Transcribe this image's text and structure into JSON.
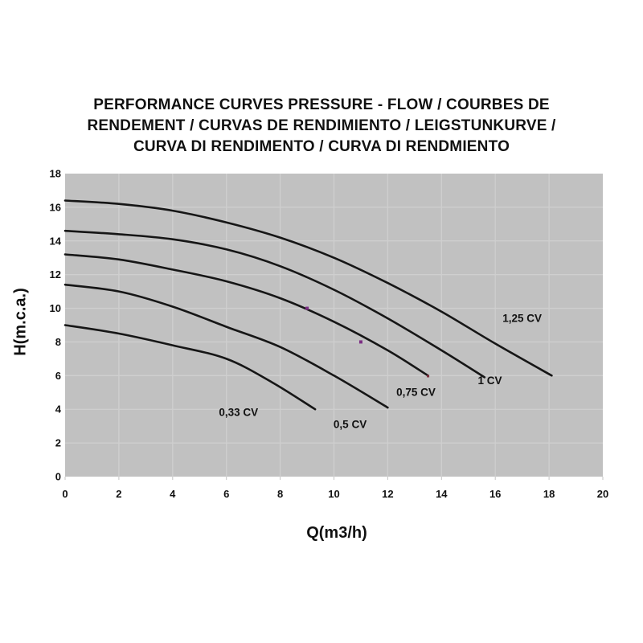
{
  "title": {
    "line1": "PERFORMANCE CURVES  PRESSURE - FLOW   /  COURBES DE",
    "line2": "RENDEMENT  /  CURVAS DE RENDIMIENTO  /  LEIGSTUNKURVE  /",
    "line3": "CURVA DI RENDIMENTO  /  CURVA DI RENDMIENTO"
  },
  "chart_data": {
    "type": "line",
    "title": "PERFORMANCE CURVES  PRESSURE - FLOW / COURBES DE RENDEMENT / CURVAS DE RENDIMIENTO / LEIGSTUNKURVE / CURVA DI RENDIMENTO / CURVA DI RENDMIENTO",
    "xlabel": "Q(m3/h)",
    "ylabel": "H(m.c.a.)",
    "xlim": [
      0,
      20
    ],
    "ylim": [
      0,
      18
    ],
    "x_ticks": [
      0,
      2,
      4,
      6,
      8,
      10,
      12,
      14,
      16,
      18,
      20
    ],
    "y_ticks": [
      0,
      2,
      4,
      6,
      8,
      10,
      12,
      14,
      16,
      18
    ],
    "grid": true,
    "legend_position": "inline-labels",
    "colors": {
      "plot_background": "#c1c1c1",
      "gridline": "#cfcfcf",
      "curve": "#161616",
      "text": "#111111",
      "marker_purple": "#7b2d83",
      "marker_maroon": "#7a2b3a"
    },
    "series": [
      {
        "name": "1,25 CV",
        "points": [
          [
            0,
            16.4
          ],
          [
            2,
            16.2
          ],
          [
            4,
            15.8
          ],
          [
            6,
            15.1
          ],
          [
            8,
            14.2
          ],
          [
            10,
            13.0
          ],
          [
            12,
            11.5
          ],
          [
            14,
            9.8
          ],
          [
            16,
            7.9
          ],
          [
            18.1,
            6.0
          ]
        ],
        "label_pos": [
          17.0,
          9.2
        ]
      },
      {
        "name": "1 CV",
        "points": [
          [
            0,
            14.6
          ],
          [
            2,
            14.4
          ],
          [
            4,
            14.1
          ],
          [
            6,
            13.5
          ],
          [
            8,
            12.5
          ],
          [
            10,
            11.1
          ],
          [
            12,
            9.4
          ],
          [
            14,
            7.5
          ],
          [
            15.6,
            5.9
          ]
        ],
        "label_pos": [
          15.8,
          5.5
        ]
      },
      {
        "name": "0,75 CV",
        "points": [
          [
            0,
            13.2
          ],
          [
            2,
            12.9
          ],
          [
            4,
            12.3
          ],
          [
            6,
            11.6
          ],
          [
            8,
            10.6
          ],
          [
            10,
            9.2
          ],
          [
            12,
            7.5
          ],
          [
            13.5,
            6.0
          ]
        ],
        "label_pos": [
          13.05,
          4.8
        ]
      },
      {
        "name": "0,5 CV",
        "points": [
          [
            0,
            11.4
          ],
          [
            2,
            11.0
          ],
          [
            4,
            10.1
          ],
          [
            6,
            8.9
          ],
          [
            8,
            7.7
          ],
          [
            10,
            6.0
          ],
          [
            12,
            4.1
          ]
        ],
        "label_pos": [
          10.6,
          2.9
        ]
      },
      {
        "name": "0,33 CV",
        "points": [
          [
            0,
            9.0
          ],
          [
            2,
            8.5
          ],
          [
            4,
            7.8
          ],
          [
            6,
            7.0
          ],
          [
            7.7,
            5.6
          ],
          [
            9.3,
            4.0
          ]
        ],
        "label_pos": [
          6.45,
          3.6
        ]
      }
    ],
    "markers": [
      {
        "x": 9,
        "y": 10,
        "color": "#7b2d83",
        "size": 4
      },
      {
        "x": 11,
        "y": 8,
        "color": "#7b2d83",
        "size": 4
      },
      {
        "x": 13.5,
        "y": 5.97,
        "color": "#7a2b3a",
        "size": 3
      }
    ]
  }
}
